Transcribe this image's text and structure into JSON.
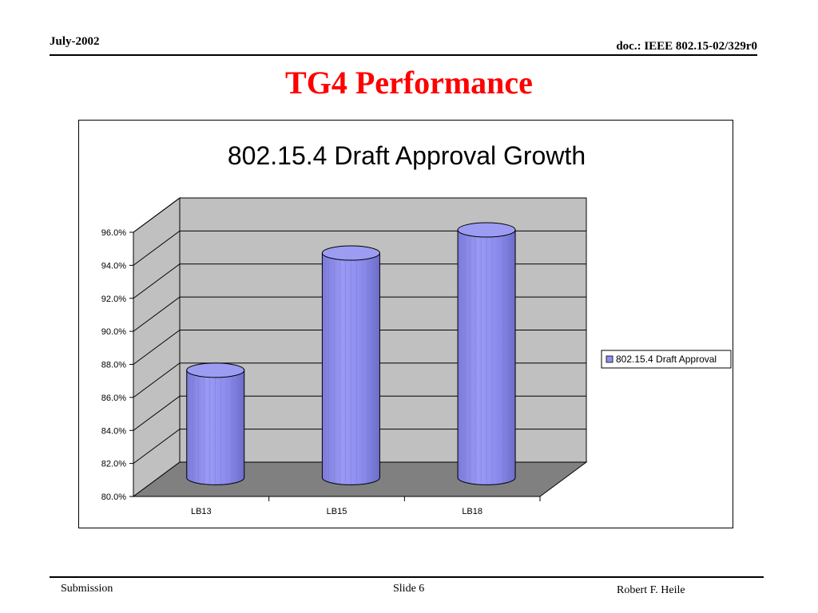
{
  "slide": {
    "date": "July-2002",
    "doc_id": "doc.: IEEE 802.15-02/329r0",
    "title": "TG4 Performance",
    "footer_left": "Submission",
    "footer_center": "Slide 6",
    "footer_right": "Robert F. Heile"
  },
  "colors": {
    "title": "#ff0000",
    "bar_fill": "#8f8fef",
    "bar_top": "#9c9cf2",
    "wall": "#c0c0c0",
    "floor": "#808080"
  },
  "chart_data": {
    "type": "bar",
    "style": "3d-cylinder",
    "title": "802.15.4 Draft Approval Growth",
    "categories": [
      "LB13",
      "LB15",
      "LB18"
    ],
    "series": [
      {
        "name": "802.15.4 Draft Approval",
        "values": [
          86.5,
          93.6,
          95.0
        ]
      }
    ],
    "ylim": [
      80,
      96
    ],
    "yticks": [
      "80.0%",
      "82.0%",
      "84.0%",
      "86.0%",
      "88.0%",
      "90.0%",
      "92.0%",
      "94.0%",
      "96.0%"
    ],
    "xlabel": "",
    "ylabel": "",
    "grid": true,
    "legend_position": "right"
  }
}
